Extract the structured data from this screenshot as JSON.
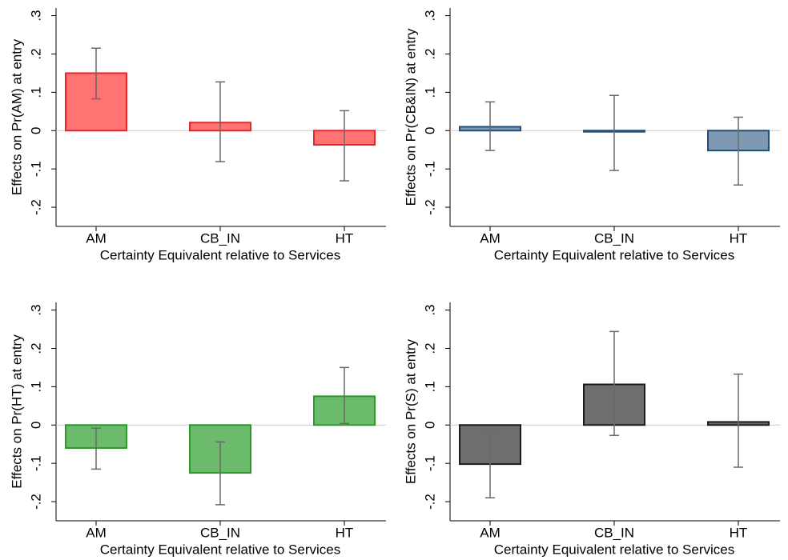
{
  "chart_data": [
    {
      "type": "bar",
      "y_label": "Effects on Pr(AM) at entry",
      "x_label": "Certainty Equivalent relative to Services",
      "categories": [
        "AM",
        "CB_IN",
        "HT"
      ],
      "values": [
        0.15,
        0.021,
        -0.037
      ],
      "ci_lower": [
        0.083,
        -0.081,
        -0.131
      ],
      "ci_upper": [
        0.215,
        0.127,
        0.052
      ],
      "color": "#ff7373",
      "edgecolor": "#e8262a",
      "ylim": [
        -0.25,
        0.32
      ],
      "yticks": [
        {
          "value": -0.2,
          "label": "-.2"
        },
        {
          "value": -0.1,
          "label": "-.1"
        },
        0,
        {
          "value": 0.1,
          "label": ".1"
        },
        {
          "value": 0.2,
          "label": ".2"
        },
        {
          "value": 0.3,
          "label": ".3"
        }
      ],
      "zero_line": true
    },
    {
      "type": "bar",
      "y_label": "Effects on Pr(CB&IN) at entry",
      "x_label": "Certainty Equivalent relative to Services",
      "categories": [
        "AM",
        "CB_IN",
        "HT"
      ],
      "values": [
        0.01,
        -0.003,
        -0.052
      ],
      "ci_lower": [
        -0.052,
        -0.104,
        -0.142
      ],
      "ci_upper": [
        0.075,
        0.092,
        0.035
      ],
      "color": "#7f99b2",
      "edgecolor": "#1f4e79",
      "ylim": [
        -0.25,
        0.32
      ],
      "yticks": [
        {
          "value": -0.2,
          "label": "-.2"
        },
        {
          "value": -0.1,
          "label": "-.1"
        },
        0,
        {
          "value": 0.1,
          "label": ".1"
        },
        {
          "value": 0.2,
          "label": ".2"
        },
        {
          "value": 0.3,
          "label": ".3"
        }
      ],
      "zero_line": true
    },
    {
      "type": "bar",
      "y_label": "Effects on Pr(HT) at entry",
      "x_label": "Certainty Equivalent relative to Services",
      "categories": [
        "AM",
        "CB_IN",
        "HT"
      ],
      "values": [
        -0.06,
        -0.125,
        0.075
      ],
      "ci_lower": [
        -0.115,
        -0.208,
        0.004
      ],
      "ci_upper": [
        -0.008,
        -0.044,
        0.15
      ],
      "color": "#6cba6c",
      "edgecolor": "#2a9a2a",
      "ylim": [
        -0.25,
        0.32
      ],
      "yticks": [
        {
          "value": -0.2,
          "label": "-.2"
        },
        {
          "value": -0.1,
          "label": "-.1"
        },
        0,
        {
          "value": 0.1,
          "label": ".1"
        },
        {
          "value": 0.2,
          "label": ".2"
        },
        {
          "value": 0.3,
          "label": ".3"
        }
      ],
      "zero_line": true
    },
    {
      "type": "bar",
      "y_label": "Effects on Pr(S) at entry",
      "x_label": "Certainty Equivalent relative to Services",
      "categories": [
        "AM",
        "CB_IN",
        "HT"
      ],
      "values": [
        -0.102,
        0.106,
        0.008
      ],
      "ci_lower": [
        -0.19,
        -0.027,
        -0.11
      ],
      "ci_upper": [
        -0.017,
        0.244,
        0.133
      ],
      "color": "#6e6e6e",
      "edgecolor": "#1a1a1a",
      "ylim": [
        -0.25,
        0.32
      ],
      "yticks": [
        {
          "value": -0.2,
          "label": "-.2"
        },
        {
          "value": -0.1,
          "label": "-.1"
        },
        0,
        {
          "value": 0.1,
          "label": ".1"
        },
        {
          "value": 0.2,
          "label": ".2"
        },
        {
          "value": 0.3,
          "label": ".3"
        }
      ],
      "zero_line": true
    }
  ]
}
